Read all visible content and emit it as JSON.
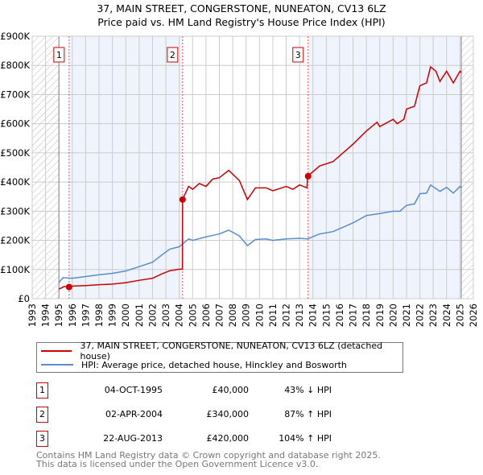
{
  "title": "37, MAIN STREET, CONGERSTONE, NUNEATON, CV13 6LZ",
  "subtitle": "Price paid vs. HM Land Registry's House Price Index (HPI)",
  "chart_data": {
    "type": "line",
    "title": "37, MAIN STREET, CONGERSTONE, NUNEATON, CV13 6LZ",
    "subtitle": "Price paid vs. HM Land Registry's House Price Index (HPI)",
    "xlim": [
      1993,
      2026
    ],
    "ylim": [
      0,
      900000
    ],
    "x_ticks": [
      "1993",
      "1994",
      "1995",
      "1996",
      "1997",
      "1998",
      "1999",
      "2000",
      "2001",
      "2002",
      "2003",
      "2004",
      "2005",
      "2006",
      "2007",
      "2008",
      "2009",
      "2010",
      "2011",
      "2012",
      "2013",
      "2014",
      "2015",
      "2016",
      "2017",
      "2018",
      "2019",
      "2020",
      "2021",
      "2022",
      "2023",
      "2024",
      "2025",
      "2026"
    ],
    "y_ticks": [
      {
        "v": 0,
        "label": "£0"
      },
      {
        "v": 100000,
        "label": "£100K"
      },
      {
        "v": 200000,
        "label": "£200K"
      },
      {
        "v": 300000,
        "label": "£300K"
      },
      {
        "v": 400000,
        "label": "£400K"
      },
      {
        "v": 500000,
        "label": "£500K"
      },
      {
        "v": 600000,
        "label": "£600K"
      },
      {
        "v": 700000,
        "label": "£700K"
      },
      {
        "v": 800000,
        "label": "£800K"
      },
      {
        "v": 900000,
        "label": "£900K"
      }
    ],
    "series": [
      {
        "name": "37, MAIN STREET, CONGERSTONE, NUNEATON, CV13 6LZ (detached house)",
        "color": "#cc0000",
        "x": [
          1995.0,
          1995.4,
          1995.75,
          1996,
          1997,
          1998,
          1999,
          2000,
          2001,
          2002,
          2002.7,
          2003.3,
          2004,
          2004.24,
          2004.25,
          2004.7,
          2005,
          2005.5,
          2006,
          2006.5,
          2007,
          2007.7,
          2008.5,
          2009.1,
          2009.7,
          2010.5,
          2011,
          2012,
          2012.5,
          2013,
          2013.55,
          2013.6,
          2014.5,
          2015.5,
          2016,
          2017,
          2018,
          2018.8,
          2019,
          2020,
          2020.3,
          2020.8,
          2021,
          2021.6,
          2022,
          2022.5,
          2022.8,
          2023.2,
          2023.5,
          2024,
          2024.5,
          2025,
          2025.1
        ],
        "y": [
          33000,
          42000,
          40000,
          43000,
          45000,
          48000,
          50000,
          55000,
          63000,
          70000,
          85000,
          96000,
          101000,
          101000,
          340000,
          385000,
          375000,
          395000,
          385000,
          410000,
          415000,
          440000,
          405000,
          340000,
          380000,
          380000,
          370000,
          385000,
          375000,
          390000,
          380000,
          420000,
          455000,
          470000,
          490000,
          530000,
          575000,
          605000,
          590000,
          615000,
          600000,
          615000,
          650000,
          660000,
          730000,
          740000,
          795000,
          780000,
          745000,
          780000,
          740000,
          780000,
          775000
        ]
      },
      {
        "name": "HPI: Average price, detached house, Hinckley and Bosworth",
        "color": "#5b8dd0",
        "x": [
          1995.0,
          1995.3,
          1996,
          1997,
          1998,
          1999,
          2000,
          2001,
          2002,
          2002.7,
          2003.3,
          2004,
          2004.7,
          2005,
          2006,
          2007,
          2007.7,
          2008.5,
          2009.1,
          2009.7,
          2010.5,
          2011,
          2012,
          2013,
          2013.6,
          2014.5,
          2015.5,
          2016,
          2017,
          2018,
          2019,
          2020,
          2020.5,
          2021,
          2021.6,
          2022,
          2022.5,
          2022.8,
          2023.5,
          2024,
          2024.5,
          2025,
          2025.1
        ],
        "y": [
          55000,
          72000,
          70000,
          76000,
          82000,
          87000,
          95000,
          110000,
          125000,
          150000,
          170000,
          178000,
          205000,
          200000,
          212000,
          222000,
          235000,
          215000,
          182000,
          203000,
          205000,
          200000,
          205000,
          207000,
          205000,
          222000,
          230000,
          240000,
          260000,
          285000,
          292000,
          300000,
          300000,
          320000,
          325000,
          360000,
          362000,
          390000,
          368000,
          382000,
          362000,
          385000,
          380000
        ]
      }
    ],
    "sales": [
      {
        "label": "1",
        "x": 1995.76,
        "y": 40000
      },
      {
        "label": "2",
        "x": 2004.25,
        "y": 340000
      },
      {
        "label": "3",
        "x": 2013.64,
        "y": 420000
      }
    ],
    "legend_placement": "below"
  },
  "legend": [
    "37, MAIN STREET, CONGERSTONE, NUNEATON, CV13 6LZ (detached house)",
    "HPI: Average price, detached house, Hinckley and Bosworth"
  ],
  "transactions": [
    {
      "num": "1",
      "date": "04-OCT-1995",
      "price": "£40,000",
      "hpi": "43% ↓ HPI"
    },
    {
      "num": "2",
      "date": "02-APR-2004",
      "price": "£340,000",
      "hpi": "87% ↑ HPI"
    },
    {
      "num": "3",
      "date": "22-AUG-2013",
      "price": "£420,000",
      "hpi": "104% ↑ HPI"
    }
  ],
  "footer": [
    "Contains HM Land Registry data © Crown copyright and database right 2025.",
    "This data is licensed under the Open Government Licence v3.0."
  ]
}
